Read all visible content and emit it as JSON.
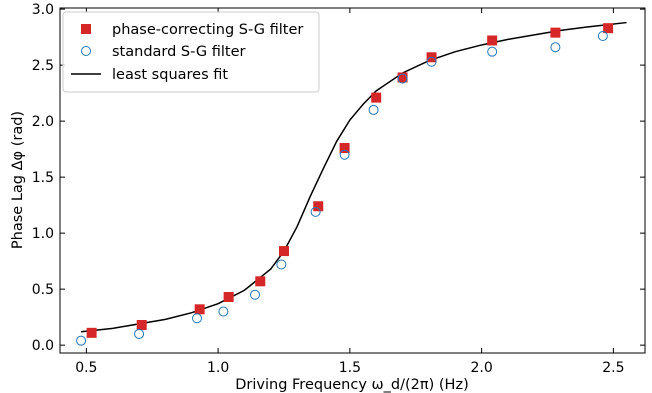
{
  "chart_data": {
    "type": "scatter",
    "xlabel": "Driving Frequency  ω_d/(2π) (Hz)",
    "ylabel": "Phase Lag Δφ (rad)",
    "xlim": [
      0.4,
      2.62
    ],
    "ylim": [
      -0.07,
      3.01
    ],
    "x_ticks": [
      0.5,
      1.0,
      1.5,
      2.0,
      2.5
    ],
    "y_ticks": [
      0.0,
      0.5,
      1.0,
      1.5,
      2.0,
      2.5,
      3.0
    ],
    "x_tick_labels": [
      "0.5",
      "1.0",
      "1.5",
      "2.0",
      "2.5"
    ],
    "y_tick_labels": [
      "0.0",
      "0.5",
      "1.0",
      "1.5",
      "2.0",
      "2.5",
      "3.0"
    ],
    "grid": false,
    "legend_position": "top-left",
    "series": [
      {
        "name": "phase-correcting S-G filter",
        "marker": "square",
        "color": "#d62728",
        "x": [
          0.52,
          0.71,
          0.93,
          1.04,
          1.16,
          1.25,
          1.38,
          1.48,
          1.6,
          1.7,
          1.81,
          2.04,
          2.28,
          2.48
        ],
        "y": [
          0.11,
          0.18,
          0.32,
          0.43,
          0.57,
          0.84,
          1.24,
          1.76,
          2.21,
          2.39,
          2.57,
          2.72,
          2.79,
          2.83
        ]
      },
      {
        "name": "standard S-G filter",
        "marker": "open-circle",
        "color": "#1f77b4",
        "x": [
          0.48,
          0.7,
          0.92,
          1.02,
          1.14,
          1.24,
          1.37,
          1.48,
          1.59,
          1.7,
          1.81,
          2.04,
          2.28,
          2.46
        ],
        "y": [
          0.04,
          0.1,
          0.24,
          0.3,
          0.45,
          0.72,
          1.19,
          1.7,
          2.1,
          2.38,
          2.53,
          2.62,
          2.66,
          2.76
        ]
      },
      {
        "name": "least squares fit",
        "line": "solid",
        "color": "#000000",
        "x": [
          0.48,
          0.6,
          0.7,
          0.8,
          0.9,
          1.0,
          1.1,
          1.2,
          1.25,
          1.3,
          1.35,
          1.4,
          1.45,
          1.5,
          1.55,
          1.6,
          1.7,
          1.8,
          1.9,
          2.0,
          2.1,
          2.2,
          2.3,
          2.4,
          2.55
        ],
        "y": [
          0.12,
          0.15,
          0.19,
          0.23,
          0.29,
          0.37,
          0.49,
          0.68,
          0.84,
          1.06,
          1.33,
          1.58,
          1.82,
          2.01,
          2.15,
          2.27,
          2.43,
          2.54,
          2.62,
          2.68,
          2.73,
          2.77,
          2.81,
          2.84,
          2.88
        ]
      }
    ]
  }
}
